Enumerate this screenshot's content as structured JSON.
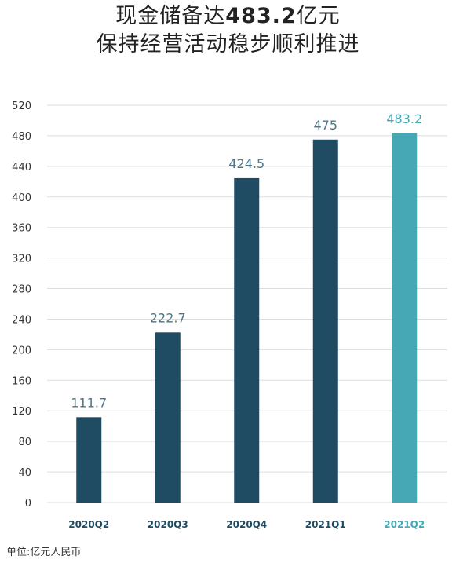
{
  "title": {
    "line1_prefix": "现金储备达",
    "line1_highlight": "483.2",
    "line1_suffix": "亿元",
    "line2": "保持经营活动稳步顺利推进"
  },
  "unit_note": "单位:亿元人民币",
  "colors": {
    "bar": "#1f4b63",
    "bar_highlight": "#45a8b4",
    "label": "#4f7585",
    "label_highlight": "#45a8b4",
    "axis_text": "#333333",
    "grid": "#dddddd"
  },
  "chart_data": {
    "type": "bar",
    "categories": [
      "2020Q2",
      "2020Q3",
      "2020Q4",
      "2021Q1",
      "2021Q2"
    ],
    "values": [
      111.7,
      222.7,
      424.5,
      475,
      483.2
    ],
    "data_labels": [
      "111.7",
      "222.7",
      "424.5",
      "475",
      "483.2"
    ],
    "highlight_index": 4,
    "ylim": [
      0,
      520
    ],
    "yticks": [
      0,
      40,
      80,
      120,
      160,
      200,
      240,
      280,
      320,
      360,
      400,
      440,
      480,
      520
    ],
    "grid": true,
    "xlabel": "",
    "ylabel": ""
  }
}
